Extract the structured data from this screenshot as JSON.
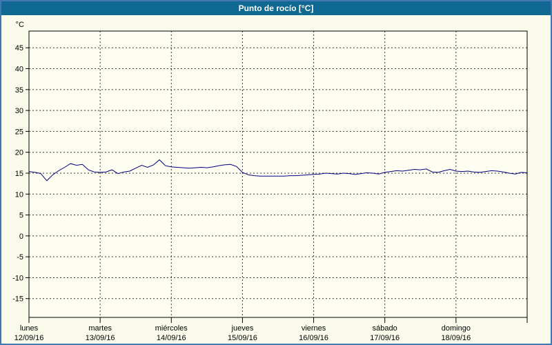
{
  "window": {
    "title": "Punto de rocío [°C]"
  },
  "colors": {
    "header_bg": "#0e6892",
    "header_text": "#ffffff",
    "page_bg": "#fbfbec",
    "plot_bg": "#fdfdf2",
    "frame_border": "#4377b1",
    "grid": "#333333",
    "axis": "#000000",
    "line": "#000080"
  },
  "chart_data": {
    "type": "line",
    "title": "Punto de rocío [°C]",
    "y_unit_label": "°C",
    "ylim": [
      -19.5,
      49
    ],
    "y_ticks": [
      45,
      40,
      35,
      30,
      25,
      20,
      15,
      10,
      5,
      0,
      -5,
      -10,
      -15
    ],
    "grid": "dashed",
    "x_range_hours": [
      0,
      168
    ],
    "x_day_ticks": [
      {
        "hour": 0,
        "day": "lunes",
        "date": "12/09/16"
      },
      {
        "hour": 24,
        "day": "martes",
        "date": "13/09/16"
      },
      {
        "hour": 48,
        "day": "miércoles",
        "date": "14/09/16"
      },
      {
        "hour": 72,
        "day": "jueves",
        "date": "15/09/16"
      },
      {
        "hour": 96,
        "day": "viernes",
        "date": "16/09/16"
      },
      {
        "hour": 120,
        "day": "sábado",
        "date": "17/09/16"
      },
      {
        "hour": 144,
        "day": "domingo",
        "date": "18/09/16"
      }
    ],
    "x_end_tick_hour": 168,
    "series": [
      {
        "name": "Punto de rocío",
        "color": "#000080",
        "step_hours": 2,
        "values": [
          15.4,
          15.2,
          14.9,
          13.2,
          14.6,
          15.6,
          16.4,
          17.3,
          16.9,
          17.1,
          15.8,
          15.3,
          15.2,
          15.3,
          15.8,
          14.9,
          15.3,
          15.5,
          16.2,
          16.9,
          16.4,
          17.0,
          18.2,
          16.8,
          16.5,
          16.4,
          16.3,
          16.2,
          16.3,
          16.4,
          16.3,
          16.5,
          16.8,
          17.0,
          17.1,
          16.6,
          15.2,
          14.6,
          14.4,
          14.3,
          14.3,
          14.3,
          14.3,
          14.3,
          14.4,
          14.4,
          14.5,
          14.6,
          14.7,
          14.8,
          15.0,
          14.9,
          14.8,
          15.0,
          14.9,
          14.7,
          14.9,
          15.1,
          15.0,
          14.8,
          15.2,
          15.4,
          15.6,
          15.5,
          15.7,
          15.9,
          15.8,
          16.0,
          15.3,
          15.2,
          15.6,
          15.9,
          15.5,
          15.4,
          15.5,
          15.3,
          15.2,
          15.4,
          15.6,
          15.5,
          15.3,
          15.0,
          14.8,
          15.2,
          15.1
        ]
      }
    ]
  }
}
